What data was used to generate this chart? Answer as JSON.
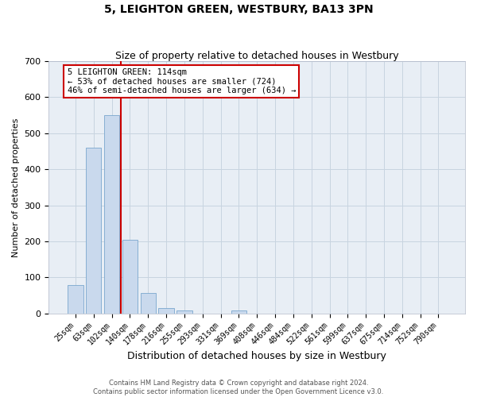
{
  "title": "5, LEIGHTON GREEN, WESTBURY, BA13 3PN",
  "subtitle": "Size of property relative to detached houses in Westbury",
  "xlabel": "Distribution of detached houses by size in Westbury",
  "ylabel": "Number of detached properties",
  "bar_labels": [
    "25sqm",
    "63sqm",
    "102sqm",
    "140sqm",
    "178sqm",
    "216sqm",
    "255sqm",
    "293sqm",
    "331sqm",
    "369sqm",
    "408sqm",
    "446sqm",
    "484sqm",
    "522sqm",
    "561sqm",
    "599sqm",
    "637sqm",
    "675sqm",
    "714sqm",
    "752sqm",
    "790sqm"
  ],
  "bar_values": [
    78,
    460,
    550,
    204,
    56,
    14,
    8,
    0,
    0,
    8,
    0,
    0,
    0,
    0,
    0,
    0,
    0,
    0,
    0,
    0,
    0
  ],
  "bar_color": "#c9d9ed",
  "bar_edgecolor": "#7aa7ce",
  "vline_color": "#cc0000",
  "vline_x": 2.5,
  "ylim": [
    0,
    700
  ],
  "yticks": [
    0,
    100,
    200,
    300,
    400,
    500,
    600,
    700
  ],
  "annotation_text": "5 LEIGHTON GREEN: 114sqm\n← 53% of detached houses are smaller (724)\n46% of semi-detached houses are larger (634) →",
  "annotation_box_facecolor": "#ffffff",
  "annotation_box_edgecolor": "#cc0000",
  "footer_line1": "Contains HM Land Registry data © Crown copyright and database right 2024.",
  "footer_line2": "Contains public sector information licensed under the Open Government Licence v3.0.",
  "background_color": "#ffffff",
  "plot_bg_color": "#e8eef5",
  "grid_color": "#c8d4e0",
  "title_fontsize": 10,
  "subtitle_fontsize": 9,
  "axis_label_fontsize": 8,
  "tick_fontsize": 7,
  "annotation_fontsize": 7.5,
  "footer_fontsize": 6
}
